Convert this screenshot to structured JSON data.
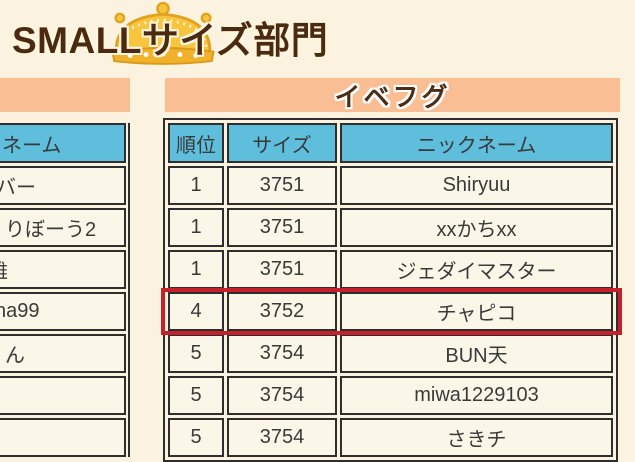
{
  "page": {
    "title": "SMALLサイズ部門",
    "background_color": "#FBF3E0"
  },
  "colors": {
    "banner": "#F9BE93",
    "header_cell": "#5EBEDC",
    "cell": "#FAF7E9",
    "border": "#2E2E2E",
    "highlight_border": "#C5202B",
    "title_text": "#4B2A10",
    "crown_gold": "#F7C53E"
  },
  "icons": {
    "crown": "crown-icon"
  },
  "right_panel": {
    "banner": "イベフグ",
    "table": {
      "headers": [
        "順位",
        "サイズ",
        "ニックネーム"
      ],
      "rows": [
        {
          "rank": "1",
          "size": "3751",
          "nickname": "Shiryuu",
          "highlight": false
        },
        {
          "rank": "1",
          "size": "3751",
          "nickname": "xxかちxx",
          "highlight": false
        },
        {
          "rank": "1",
          "size": "3751",
          "nickname": "ジェダイマスター",
          "highlight": false
        },
        {
          "rank": "4",
          "size": "3752",
          "nickname": "チャピコ",
          "highlight": true
        },
        {
          "rank": "5",
          "size": "3754",
          "nickname": "BUN天",
          "highlight": false
        },
        {
          "rank": "5",
          "size": "3754",
          "nickname": "miwa1229103",
          "highlight": false
        },
        {
          "rank": "5",
          "size": "3754",
          "nickname": "さきチ",
          "highlight": false
        }
      ]
    }
  },
  "left_panel": {
    "header_fragment": "ネーム",
    "row_fragments": [
      "バー",
      "りぼーう2",
      "雄",
      "na99",
      "ん",
      "",
      ""
    ]
  }
}
